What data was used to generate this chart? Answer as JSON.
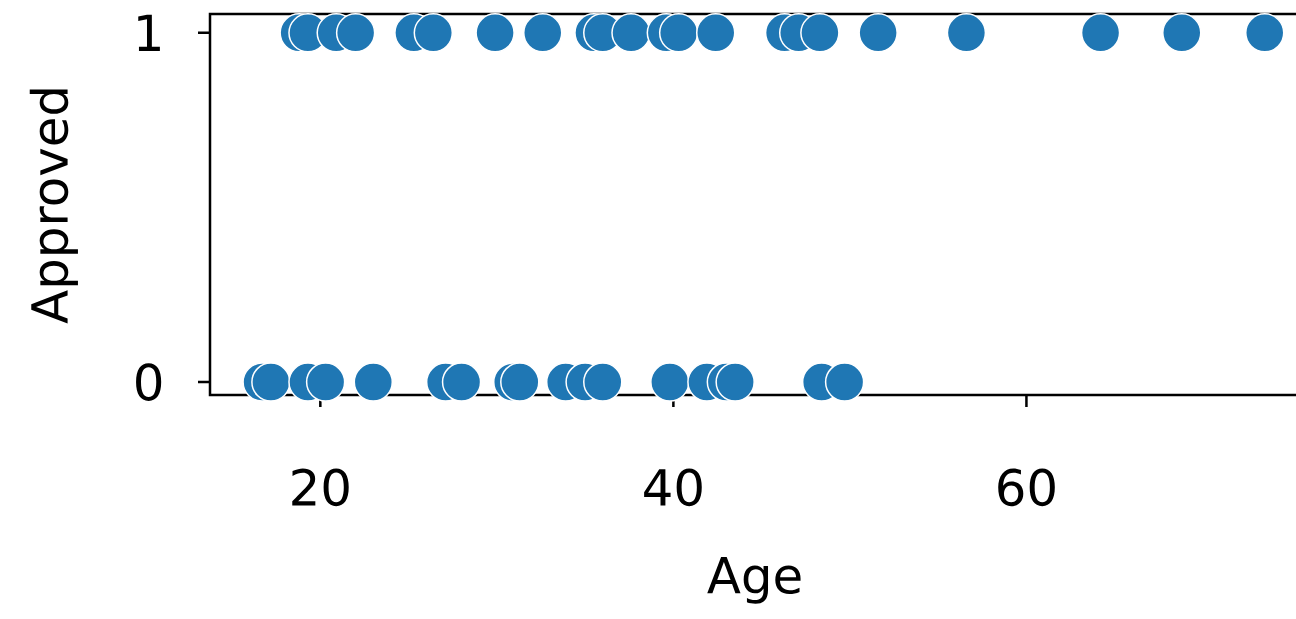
{
  "chart_data": {
    "type": "scatter",
    "xlabel": "Age",
    "ylabel": "Approved",
    "marker": "circle",
    "color": "#1f77b4",
    "x": [
      18.8,
      19.3,
      20.9,
      22.0,
      25.3,
      26.4,
      29.9,
      32.6,
      35.5,
      36.0,
      37.6,
      39.6,
      40.3,
      42.4,
      46.3,
      47.1,
      48.3,
      51.6,
      56.6,
      64.2,
      68.8,
      73.5,
      16.7,
      17.2,
      19.3,
      20.3,
      23.0,
      27.1,
      28.0,
      30.9,
      31.3,
      33.9,
      35.0,
      36.0,
      39.8,
      41.9,
      43.0,
      43.5,
      48.4,
      49.7
    ],
    "values": [
      1,
      1,
      1,
      1,
      1,
      1,
      1,
      1,
      1,
      1,
      1,
      1,
      1,
      1,
      1,
      1,
      1,
      1,
      1,
      1,
      1,
      1,
      0,
      0,
      0,
      0,
      0,
      0,
      0,
      0,
      0,
      0,
      0,
      0,
      0,
      0,
      0,
      0,
      0,
      0
    ],
    "xlim": [
      13.75,
      75.5
    ],
    "ylim": [
      -0.037,
      1.054
    ],
    "xticks": [
      20,
      40,
      60
    ],
    "yticks": [
      0,
      1
    ]
  }
}
